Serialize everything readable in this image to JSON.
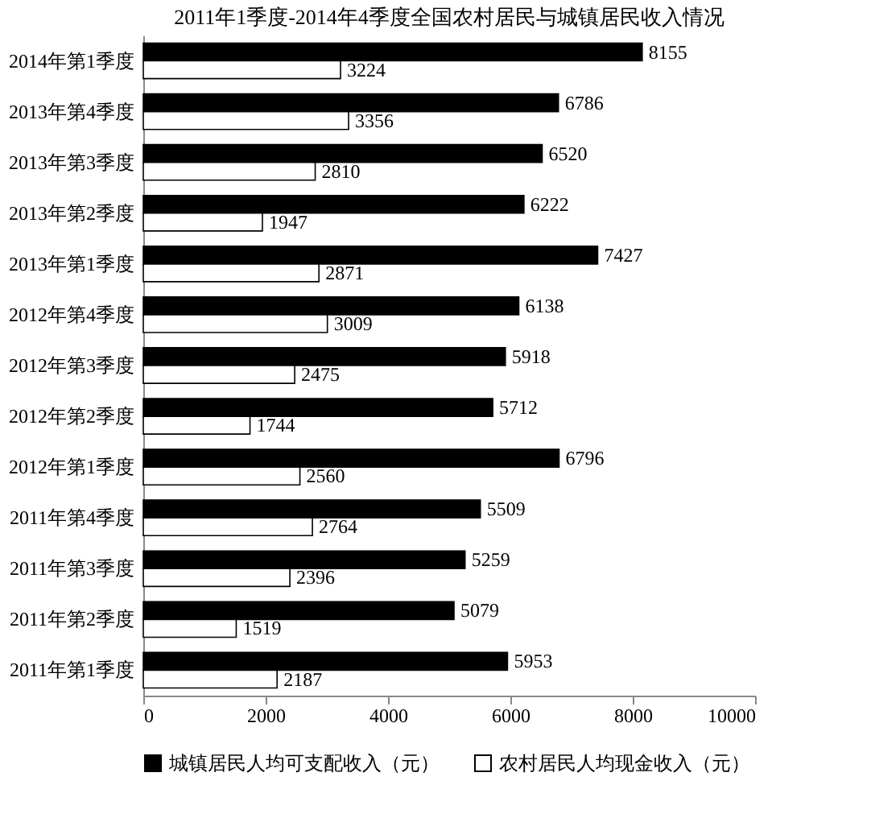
{
  "chart_data": {
    "type": "bar",
    "orientation": "horizontal",
    "title": "2011年1季度-2014年4季度全国农村居民与城镇居民收入情况",
    "categories": [
      "2014年第1季度",
      "2013年第4季度",
      "2013年第3季度",
      "2013年第2季度",
      "2013年第1季度",
      "2012年第4季度",
      "2012年第3季度",
      "2012年第2季度",
      "2012年第1季度",
      "2011年第4季度",
      "2011年第3季度",
      "2011年第2季度",
      "2011年第1季度"
    ],
    "series": [
      {
        "name": "城镇居民人均可支配收入（元）",
        "color": "#000000",
        "values": [
          8155,
          6786,
          6520,
          6222,
          7427,
          6138,
          5918,
          5712,
          6796,
          5509,
          5259,
          5079,
          5953
        ]
      },
      {
        "name": "农村居民人均现金收入（元）",
        "color": "#ffffff",
        "values": [
          3224,
          3356,
          2810,
          1947,
          2871,
          3009,
          2475,
          1744,
          2560,
          2764,
          2396,
          1519,
          2187
        ]
      }
    ],
    "xlim": [
      0,
      10000
    ],
    "xticks": [
      0,
      2000,
      4000,
      6000,
      8000,
      10000
    ],
    "grid": false,
    "legend": "bottom",
    "data_labels": true
  }
}
